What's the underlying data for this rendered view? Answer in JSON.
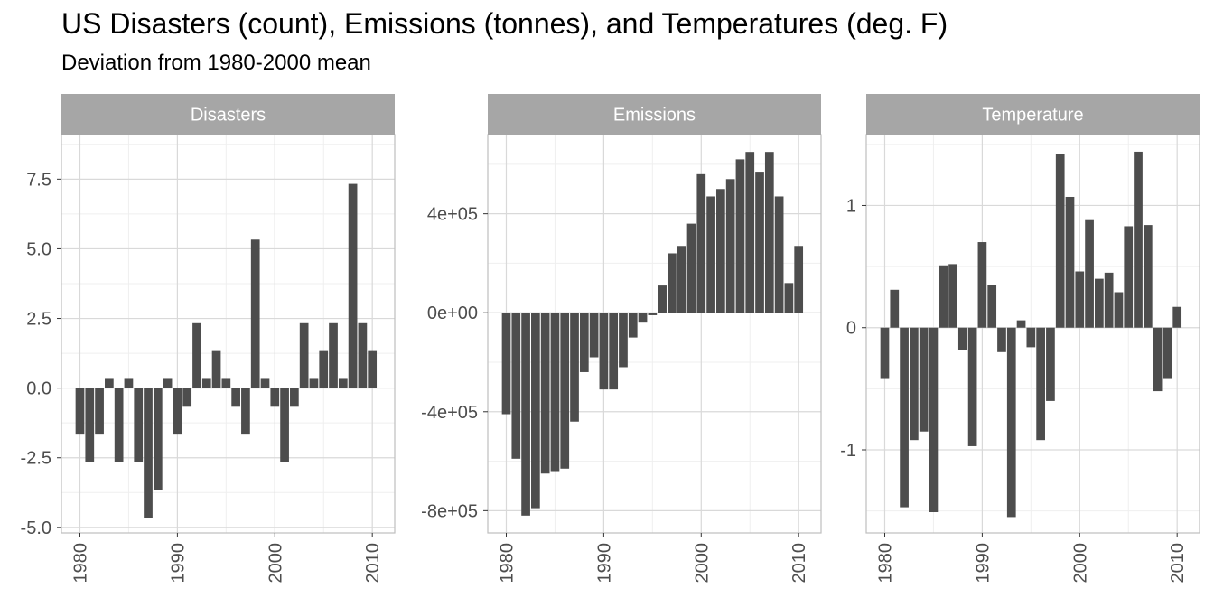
{
  "title": "US Disasters (count), Emissions (tonnes), and Temperatures (deg. F)",
  "subtitle": "Deviation from 1980-2000 mean",
  "colors": {
    "bar": "#4d4d4d",
    "strip": "#a6a6a6",
    "strip_text": "#ffffff",
    "grid_major": "#d9d9d9",
    "grid_minor": "#efefef",
    "panel_border": "#bfbfbf",
    "axis_text": "#4d4d4d"
  },
  "chart_data": [
    {
      "type": "bar",
      "facet": "Disasters",
      "x": [
        1980,
        1981,
        1982,
        1983,
        1984,
        1985,
        1986,
        1987,
        1988,
        1989,
        1990,
        1991,
        1992,
        1993,
        1994,
        1995,
        1996,
        1997,
        1998,
        1999,
        2000,
        2001,
        2002,
        2003,
        2004,
        2005,
        2006,
        2007,
        2008,
        2009,
        2010
      ],
      "values": [
        -1.67,
        -2.67,
        -1.67,
        0.33,
        -2.67,
        0.33,
        -2.67,
        -4.67,
        -3.67,
        0.33,
        -1.67,
        -0.67,
        2.33,
        0.33,
        1.33,
        0.33,
        -0.67,
        -1.67,
        5.33,
        0.33,
        -0.67,
        -2.67,
        -0.67,
        2.33,
        0.33,
        1.33,
        2.33,
        0.33,
        7.33,
        2.33,
        1.33
      ],
      "xlim": [
        1978.1,
        2012.3
      ],
      "ylim": [
        -5.2,
        9.1
      ],
      "xticks": [
        1980,
        1990,
        2000,
        2010
      ],
      "xtick_labels": [
        "1980",
        "1990",
        "2000",
        "2010"
      ],
      "yticks": [
        -5,
        -2.5,
        0,
        2.5,
        5,
        7.5
      ],
      "ytick_labels": [
        "-5.0",
        "-2.5",
        "0.0",
        "2.5",
        "5.0",
        "7.5"
      ],
      "grid": true
    },
    {
      "type": "bar",
      "facet": "Emissions",
      "x": [
        1980,
        1981,
        1982,
        1983,
        1984,
        1985,
        1986,
        1987,
        1988,
        1989,
        1990,
        1991,
        1992,
        1993,
        1994,
        1995,
        1996,
        1997,
        1998,
        1999,
        2000,
        2001,
        2002,
        2003,
        2004,
        2005,
        2006,
        2007,
        2008,
        2009,
        2010
      ],
      "values": [
        -410000,
        -590000,
        -820000,
        -790000,
        -650000,
        -640000,
        -630000,
        -440000,
        -240000,
        -180000,
        -310000,
        -310000,
        -220000,
        -100000,
        -40000,
        -10000,
        110000,
        240000,
        270000,
        360000,
        560000,
        470000,
        500000,
        540000,
        620000,
        650000,
        570000,
        650000,
        470000,
        120000,
        270000
      ],
      "xlim": [
        1978.1,
        2012.3
      ],
      "ylim": [
        -890000,
        720000
      ],
      "xticks": [
        1980,
        1990,
        2000,
        2010
      ],
      "xtick_labels": [
        "1980",
        "1990",
        "2000",
        "2010"
      ],
      "yticks": [
        -800000,
        -400000,
        0,
        400000
      ],
      "ytick_labels": [
        "-8e+05",
        "-4e+05",
        "0e+00",
        "4e+05"
      ],
      "grid": true
    },
    {
      "type": "bar",
      "facet": "Temperature",
      "x": [
        1980,
        1981,
        1982,
        1983,
        1984,
        1985,
        1986,
        1987,
        1988,
        1989,
        1990,
        1991,
        1992,
        1993,
        1994,
        1995,
        1996,
        1997,
        1998,
        1999,
        2000,
        2001,
        2002,
        2003,
        2004,
        2005,
        2006,
        2007,
        2008,
        2009,
        2010
      ],
      "values": [
        -0.42,
        0.31,
        -1.47,
        -0.92,
        -0.85,
        -1.51,
        0.51,
        0.52,
        -0.18,
        -0.97,
        0.7,
        0.35,
        -0.2,
        -1.55,
        0.06,
        -0.16,
        -0.92,
        -0.6,
        1.42,
        1.07,
        0.46,
        0.88,
        0.4,
        0.45,
        0.29,
        0.83,
        1.44,
        0.84,
        -0.52,
        -0.42,
        0.17
      ],
      "xlim": [
        1978.1,
        2012.3
      ],
      "ylim": [
        -1.68,
        1.58
      ],
      "xticks": [
        1980,
        1990,
        2000,
        2010
      ],
      "xtick_labels": [
        "1980",
        "1990",
        "2000",
        "2010"
      ],
      "yticks": [
        -1,
        0,
        1
      ],
      "ytick_labels": [
        "-1",
        "0",
        "1"
      ],
      "grid": true
    }
  ]
}
